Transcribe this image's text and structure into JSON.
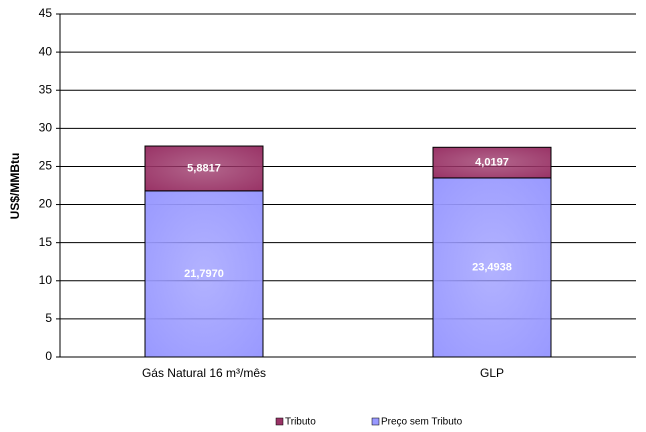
{
  "chart_data": {
    "type": "bar",
    "stacked": true,
    "y_label": "US$/MMBtu",
    "categories": [
      "Gás Natural 16 m³/mês",
      "GLP"
    ],
    "series": [
      {
        "name": "Preço sem Tributo",
        "color": "#9999ff",
        "values": [
          21.797,
          23.4938
        ],
        "value_labels": [
          "21,7970",
          "23,4938"
        ]
      },
      {
        "name": "Tributo",
        "color": "#993366",
        "values": [
          5.8817,
          4.0197
        ],
        "value_labels": [
          "5,8817",
          "4,0197"
        ]
      }
    ],
    "ylim": [
      0,
      45
    ],
    "yticks": [
      0,
      5,
      10,
      15,
      20,
      25,
      30,
      35,
      40,
      45
    ],
    "grid": true,
    "legend": "bottom"
  }
}
